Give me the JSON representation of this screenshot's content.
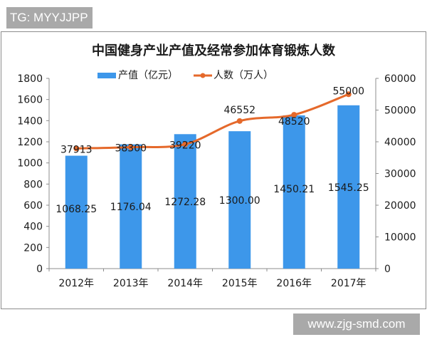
{
  "watermark_top": "TG: MYYJJPP",
  "watermark_bottom": "www.zjg-smd.com",
  "chart_data": {
    "type": "bar+line",
    "title": "中国健身产业产值及经常参加体育锻炼人数",
    "categories": [
      "2012年",
      "2013年",
      "2014年",
      "2015年",
      "2016年",
      "2017年"
    ],
    "series": [
      {
        "name": "产值（亿元）",
        "type": "bar",
        "axis": "left",
        "color": "#3d97ea",
        "values": [
          1068.25,
          1176.04,
          1272.28,
          1300.0,
          1450.21,
          1545.25
        ],
        "labels": [
          "1068.25",
          "1176.04",
          "1272.28",
          "1300.00",
          "1450.21",
          "1545.25"
        ]
      },
      {
        "name": "人数（万人）",
        "type": "line",
        "axis": "right",
        "color": "#e5692b",
        "values": [
          37913,
          38300,
          39220,
          46552,
          48520,
          55000
        ],
        "labels": [
          "37913",
          "38300",
          "39220",
          "46552",
          "48520",
          "55000"
        ]
      }
    ],
    "y_left": {
      "min": 0,
      "max": 1800,
      "ticks": [
        "0",
        "200",
        "400",
        "600",
        "800",
        "1000",
        "1200",
        "1400",
        "1600",
        "1800"
      ]
    },
    "y_right": {
      "min": 0,
      "max": 60000,
      "ticks": [
        "0",
        "10000",
        "20000",
        "30000",
        "40000",
        "50000",
        "60000"
      ]
    },
    "legend_position": "top",
    "grid": false
  }
}
